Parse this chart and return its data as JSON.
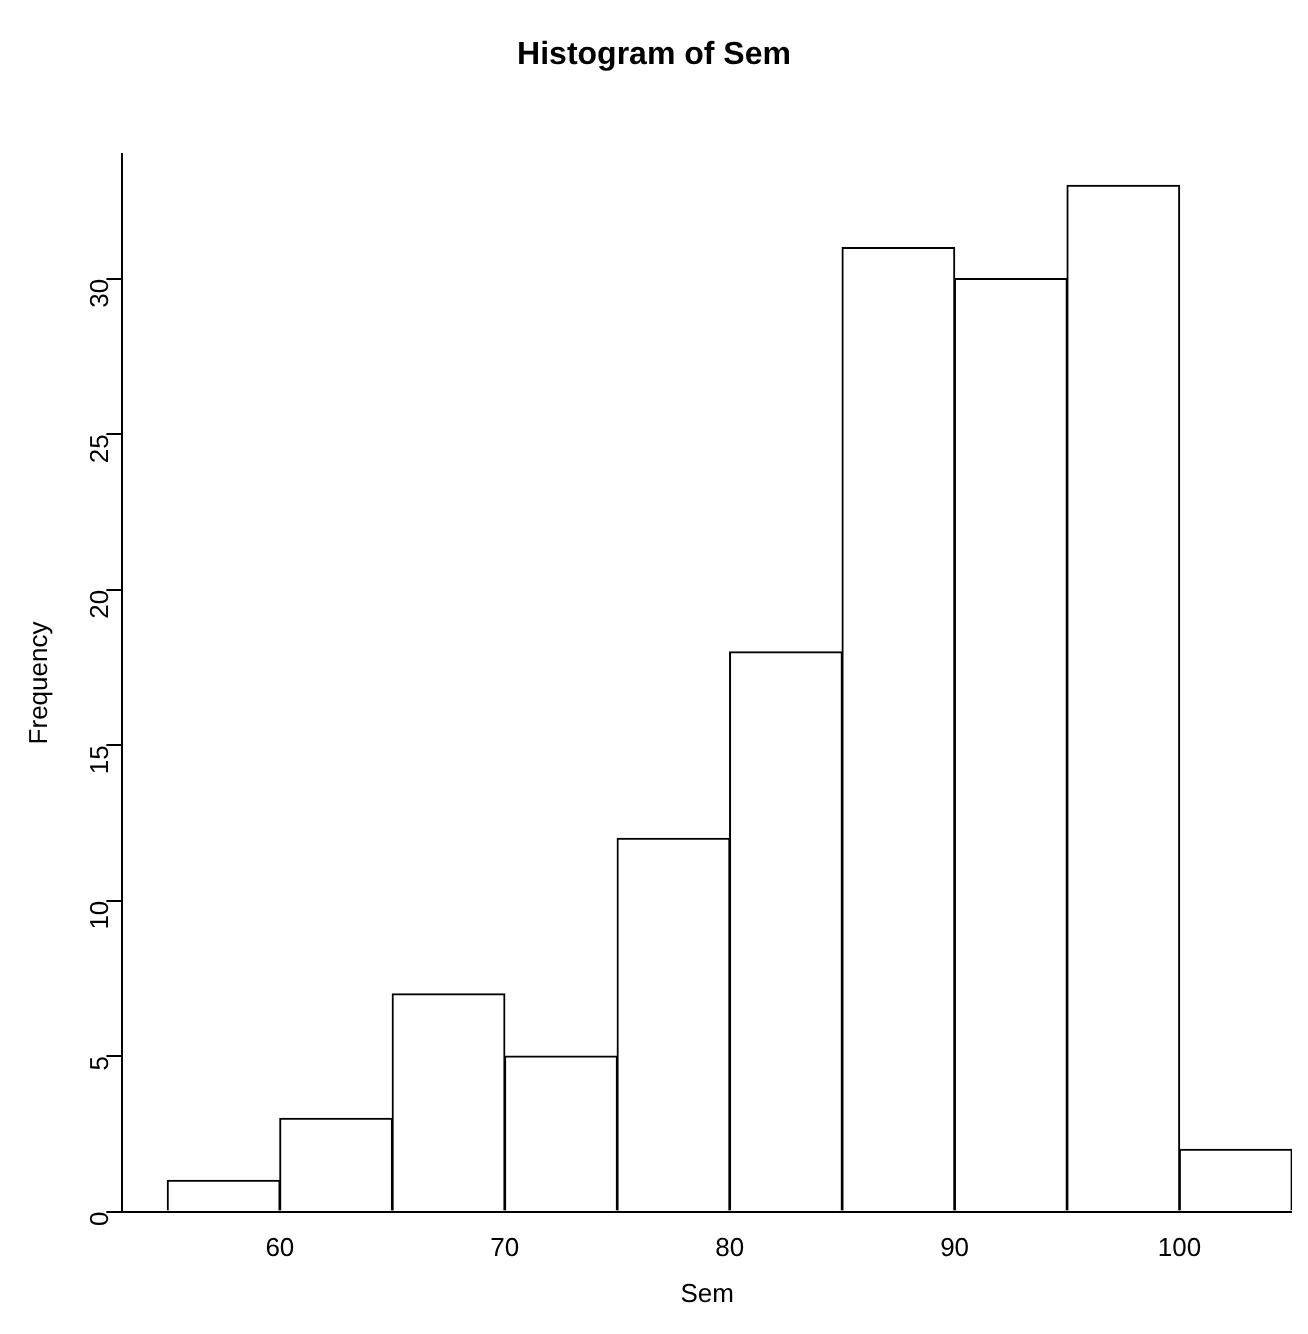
{
  "chart_data": {
    "type": "histogram",
    "title": "Histogram of Sem",
    "xlabel": "Sem",
    "ylabel": "Frequency",
    "bins": [
      55,
      60,
      65,
      70,
      75,
      80,
      85,
      90,
      95,
      100,
      105
    ],
    "values": [
      1,
      3,
      7,
      5,
      12,
      18,
      31,
      30,
      33,
      2
    ],
    "color": "#ffffff",
    "xlim": [
      53,
      105
    ],
    "xticks": [
      60,
      70,
      80,
      90,
      100
    ],
    "ylim": [
      0,
      34
    ],
    "yticks": [
      0,
      5,
      10,
      15,
      20,
      25,
      30
    ],
    "grid": false,
    "legend": false
  }
}
